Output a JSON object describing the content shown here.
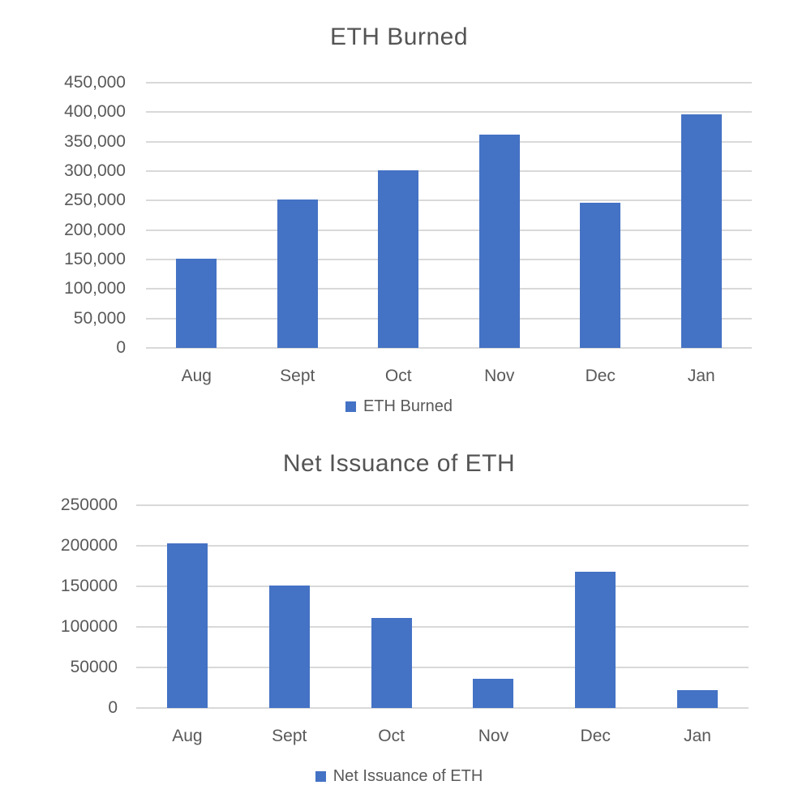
{
  "colors": {
    "bar_blue": "#4472C4",
    "gridline": "#D9D9D9",
    "axis_text": "#595959",
    "title_text": "#545454",
    "background": "#FFFFFF"
  },
  "chart_data": [
    {
      "type": "bar",
      "title": "ETH Burned",
      "categories": [
        "Aug",
        "Sept",
        "Oct",
        "Nov",
        "Dec",
        "Jan"
      ],
      "values": [
        152000,
        252000,
        302000,
        362000,
        247000,
        397000
      ],
      "ylim": [
        0,
        450000
      ],
      "ytick_step": 50000,
      "yticks": [
        "450,000",
        "400,000",
        "350,000",
        "300,000",
        "250,000",
        "200,000",
        "150,000",
        "100,000",
        "50,000",
        "0"
      ],
      "legend": "ETH Burned",
      "legend_position": "bottom",
      "grid": true,
      "bar_color": "#4472C4"
    },
    {
      "type": "bar",
      "title": "Net Issuance of ETH",
      "categories": [
        "Aug",
        "Sept",
        "Oct",
        "Nov",
        "Dec",
        "Jan"
      ],
      "values": [
        203000,
        151000,
        111000,
        36000,
        168000,
        22000
      ],
      "ylim": [
        0,
        250000
      ],
      "ytick_step": 50000,
      "yticks": [
        "250000",
        "200000",
        "150000",
        "100000",
        "50000",
        "0"
      ],
      "legend": "Net Issuance of ETH",
      "legend_position": "bottom",
      "grid": true,
      "bar_color": "#4472C4"
    }
  ]
}
